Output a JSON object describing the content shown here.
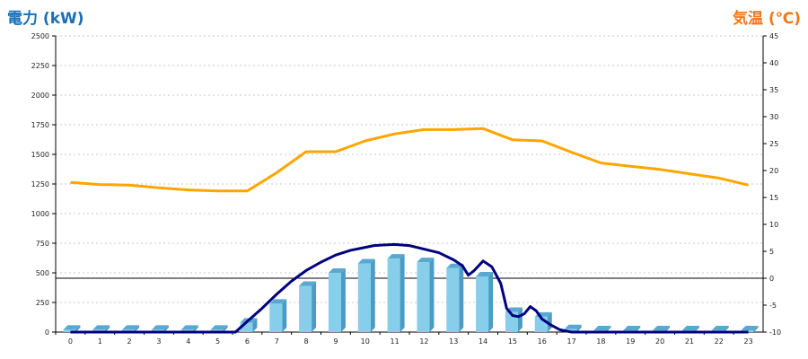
{
  "titles": {
    "left": "電力 (kW)",
    "right": "気温 (℃)"
  },
  "chart_data": {
    "type": "bar",
    "categories": [
      "0",
      "1",
      "2",
      "3",
      "4",
      "5",
      "6",
      "7",
      "8",
      "9",
      "10",
      "11",
      "12",
      "13",
      "14",
      "15",
      "16",
      "17",
      "18",
      "19",
      "20",
      "21",
      "22",
      "23"
    ],
    "y_left": {
      "label": "電力 (kW)",
      "lim": [
        0,
        2500
      ],
      "ticks": [
        0,
        250,
        500,
        750,
        1000,
        1250,
        1500,
        1750,
        2000,
        2250,
        2500
      ]
    },
    "y_right": {
      "label": "気温 (℃)",
      "lim": [
        -10,
        45
      ],
      "ticks": [
        -10,
        -5,
        0,
        5,
        10,
        15,
        20,
        25,
        30,
        35,
        40,
        45
      ]
    },
    "grid": true,
    "reference_line": {
      "axis": "right",
      "value": 0
    },
    "series": [
      {
        "type": "bar",
        "axis": "left",
        "color": "#87ceeb",
        "values": [
          20,
          20,
          20,
          20,
          20,
          20,
          80,
          240,
          390,
          500,
          580,
          620,
          590,
          540,
          470,
          170,
          130,
          25,
          15,
          15,
          15,
          15,
          15,
          15
        ]
      },
      {
        "type": "line",
        "axis": "right",
        "color": "#ffa500",
        "values": [
          17.8,
          17.4,
          17.3,
          16.8,
          16.4,
          16.2,
          16.2,
          19.6,
          23.5,
          23.5,
          25.5,
          26.8,
          27.6,
          27.6,
          27.8,
          25.7,
          25.5,
          23.4,
          21.4,
          20.8,
          20.2,
          19.4,
          18.6,
          17.3
        ]
      },
      {
        "type": "line",
        "axis": "left",
        "color": "#000080",
        "x": [
          0,
          1,
          2,
          3,
          4,
          5,
          5.6,
          6,
          6.5,
          7,
          7.5,
          8,
          8.5,
          9,
          9.5,
          10,
          10.3,
          10.6,
          11,
          11.5,
          12,
          12.5,
          13,
          13.3,
          13.5,
          13.7,
          14,
          14.3,
          14.6,
          14.8,
          15,
          15.2,
          15.4,
          15.6,
          15.8,
          16,
          16.3,
          16.6,
          17,
          18,
          19,
          20,
          21,
          22,
          23
        ],
        "values": [
          0,
          0,
          0,
          0,
          0,
          0,
          0,
          90,
          200,
          320,
          430,
          520,
          590,
          650,
          690,
          715,
          730,
          735,
          740,
          730,
          700,
          670,
          610,
          560,
          480,
          520,
          600,
          550,
          410,
          200,
          140,
          130,
          155,
          215,
          180,
          110,
          60,
          20,
          0,
          0,
          0,
          0,
          0,
          0,
          0
        ]
      }
    ]
  }
}
